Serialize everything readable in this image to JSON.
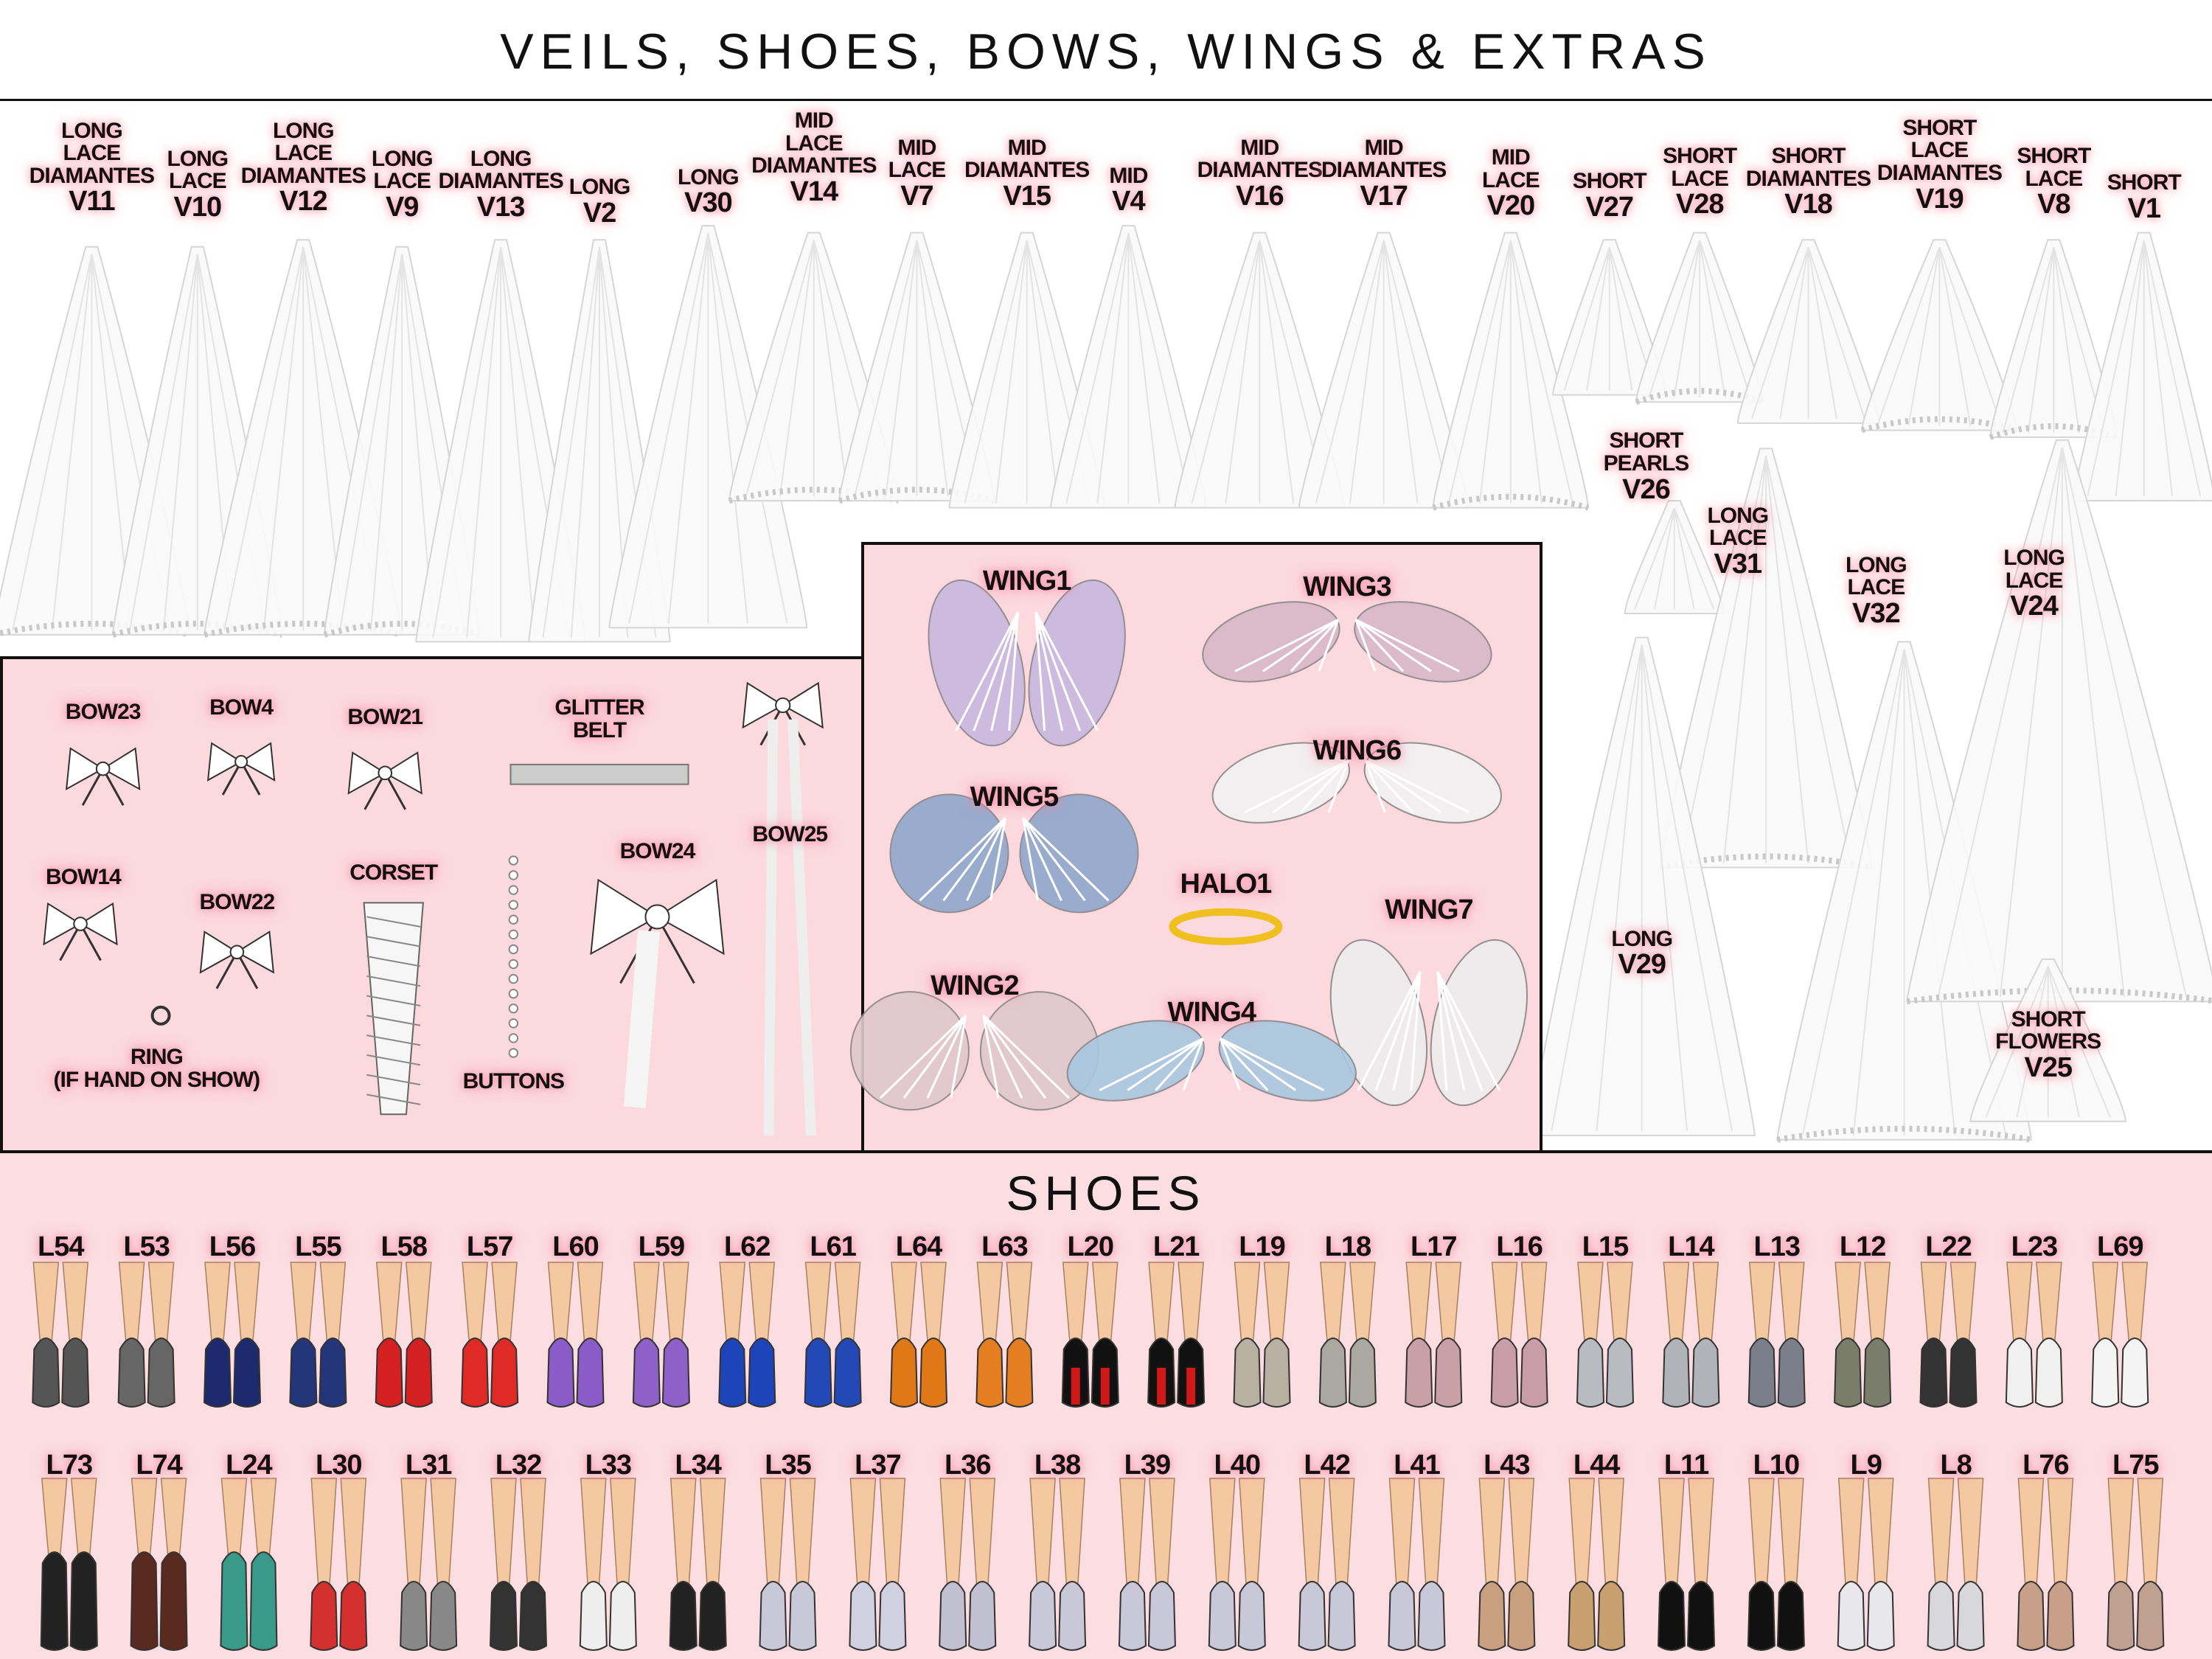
{
  "title": "VEILS, SHOES, BOWS, WINGS & EXTRAS",
  "veils": [
    {
      "id": "V11",
      "desc": [
        "LONG",
        "LACE",
        "DIAMANTES"
      ]
    },
    {
      "id": "V10",
      "desc": [
        "LONG",
        "LACE"
      ]
    },
    {
      "id": "V12",
      "desc": [
        "LONG",
        "LACE",
        "DIAMANTES"
      ]
    },
    {
      "id": "V9",
      "desc": [
        "LONG",
        "LACE"
      ]
    },
    {
      "id": "V13",
      "desc": [
        "LONG",
        "DIAMANTES"
      ]
    },
    {
      "id": "V2",
      "desc": [
        "LONG"
      ]
    },
    {
      "id": "V30",
      "desc": [
        "LONG"
      ]
    },
    {
      "id": "V14",
      "desc": [
        "MID",
        "LACE",
        "DIAMANTES"
      ]
    },
    {
      "id": "V7",
      "desc": [
        "MID",
        "LACE"
      ]
    },
    {
      "id": "V15",
      "desc": [
        "MID",
        "DIAMANTES"
      ]
    },
    {
      "id": "V4",
      "desc": [
        "MID"
      ]
    },
    {
      "id": "V16",
      "desc": [
        "MID",
        "DIAMANTES"
      ]
    },
    {
      "id": "V17",
      "desc": [
        "MID",
        "DIAMANTES"
      ]
    },
    {
      "id": "V20",
      "desc": [
        "MID",
        "LACE"
      ]
    },
    {
      "id": "V27",
      "desc": [
        "SHORT"
      ]
    },
    {
      "id": "V28",
      "desc": [
        "SHORT",
        "LACE"
      ]
    },
    {
      "id": "V18",
      "desc": [
        "SHORT",
        "DIAMANTES"
      ]
    },
    {
      "id": "V19",
      "desc": [
        "SHORT",
        "LACE",
        "DIAMANTES"
      ]
    },
    {
      "id": "V8",
      "desc": [
        "SHORT",
        "LACE"
      ]
    },
    {
      "id": "V1",
      "desc": [
        "SHORT"
      ]
    },
    {
      "id": "V26",
      "desc": [
        "SHORT",
        "PEARLS"
      ]
    },
    {
      "id": "V31",
      "desc": [
        "LONG",
        "LACE"
      ]
    },
    {
      "id": "V32",
      "desc": [
        "LONG",
        "LACE"
      ]
    },
    {
      "id": "V24",
      "desc": [
        "LONG",
        "LACE"
      ]
    },
    {
      "id": "V29",
      "desc": [
        "LONG"
      ]
    },
    {
      "id": "V25",
      "desc": [
        "SHORT",
        "FLOWERS"
      ]
    }
  ],
  "extras": [
    {
      "label": [
        "BOW23"
      ],
      "icon": "bow-icon"
    },
    {
      "label": [
        "BOW4"
      ],
      "icon": "ribbon-bow-icon"
    },
    {
      "label": [
        "BOW21"
      ],
      "icon": "bow-icon"
    },
    {
      "label": [
        "GLITTER",
        "BELT"
      ],
      "icon": "belt-icon"
    },
    {
      "label": [
        "BOW25"
      ],
      "icon": "long-bow-icon"
    },
    {
      "label": [
        "BOW14"
      ],
      "icon": "bow-icon"
    },
    {
      "label": [
        "BOW22"
      ],
      "icon": "bow-icon"
    },
    {
      "label": [
        "CORSET"
      ],
      "icon": "corset-icon"
    },
    {
      "label": [
        "BOW24"
      ],
      "icon": "large-bow-icon"
    },
    {
      "label": [
        "RING",
        "(IF HAND ON SHOW)"
      ],
      "icon": "ring-icon"
    },
    {
      "label": [
        "BUTTONS"
      ],
      "icon": "buttons-icon"
    }
  ],
  "wings": [
    {
      "label": "WING1",
      "color": "#c9b8e0"
    },
    {
      "label": "WING3",
      "color": "#d8b8c8"
    },
    {
      "label": "WING5",
      "color": "#8fa8cc"
    },
    {
      "label": "WING6",
      "color": "#f2f2f2"
    },
    {
      "label": "HALO1",
      "color": "#f0c020"
    },
    {
      "label": "WING7",
      "color": "#eeeeee"
    },
    {
      "label": "WING2",
      "color": "#e0c8cc"
    },
    {
      "label": "WING4",
      "color": "#a8c8e0"
    }
  ],
  "shoes_title": "SHOES",
  "shoe_rows": [
    [
      {
        "id": "L54",
        "color": "#555555"
      },
      {
        "id": "L53",
        "color": "#666666"
      },
      {
        "id": "L56",
        "color": "#1e2a6e"
      },
      {
        "id": "L55",
        "color": "#24357a"
      },
      {
        "id": "L58",
        "color": "#d42020"
      },
      {
        "id": "L57",
        "color": "#e02a25"
      },
      {
        "id": "L60",
        "color": "#8a5cc8"
      },
      {
        "id": "L59",
        "color": "#8e60c8"
      },
      {
        "id": "L62",
        "color": "#1d44b8"
      },
      {
        "id": "L61",
        "color": "#2448b5"
      },
      {
        "id": "L64",
        "color": "#e07818"
      },
      {
        "id": "L63",
        "color": "#e57e20"
      },
      {
        "id": "L20",
        "color": "#111111"
      },
      {
        "id": "L21",
        "color": "#111111"
      },
      {
        "id": "L19",
        "color": "#b8b0a0"
      },
      {
        "id": "L18",
        "color": "#aaa8a0"
      },
      {
        "id": "L17",
        "color": "#c9a0a8"
      },
      {
        "id": "L16",
        "color": "#c89ca8"
      },
      {
        "id": "L15",
        "color": "#b8bcc0"
      },
      {
        "id": "L14",
        "color": "#b0b4b8"
      },
      {
        "id": "L13",
        "color": "#7a7f8a"
      },
      {
        "id": "L12",
        "color": "#7a7d6a"
      },
      {
        "id": "L22",
        "color": "#333333"
      },
      {
        "id": "L23",
        "color": "#f0f0f0"
      },
      {
        "id": "L69",
        "color": "#f4f4f4"
      }
    ],
    [
      {
        "id": "L73",
        "color": "#222222"
      },
      {
        "id": "L74",
        "color": "#5a2a20"
      },
      {
        "id": "L24",
        "color": "#3a9a8a"
      },
      {
        "id": "L30",
        "color": "#d43030"
      },
      {
        "id": "L31",
        "color": "#888888"
      },
      {
        "id": "L32",
        "color": "#333333"
      },
      {
        "id": "L33",
        "color": "#eeeeee"
      },
      {
        "id": "L34",
        "color": "#222222"
      },
      {
        "id": "L35",
        "color": "#c8c8d8"
      },
      {
        "id": "L37",
        "color": "#d0d0e0"
      },
      {
        "id": "L36",
        "color": "#c0c0d0"
      },
      {
        "id": "L38",
        "color": "#c8c8d8"
      },
      {
        "id": "L39",
        "color": "#c8c8d8"
      },
      {
        "id": "L40",
        "color": "#c8c8d8"
      },
      {
        "id": "L42",
        "color": "#c8c8d8"
      },
      {
        "id": "L41",
        "color": "#c8c8d8"
      },
      {
        "id": "L43",
        "color": "#c8a080"
      },
      {
        "id": "L44",
        "color": "#c8a070"
      },
      {
        "id": "L11",
        "color": "#111111"
      },
      {
        "id": "L10",
        "color": "#111111"
      },
      {
        "id": "L9",
        "color": "#e8e8ec"
      },
      {
        "id": "L8",
        "color": "#d8d8dc"
      },
      {
        "id": "L76",
        "color": "#c8a08a"
      },
      {
        "id": "L75",
        "color": "#c0a090"
      }
    ]
  ]
}
